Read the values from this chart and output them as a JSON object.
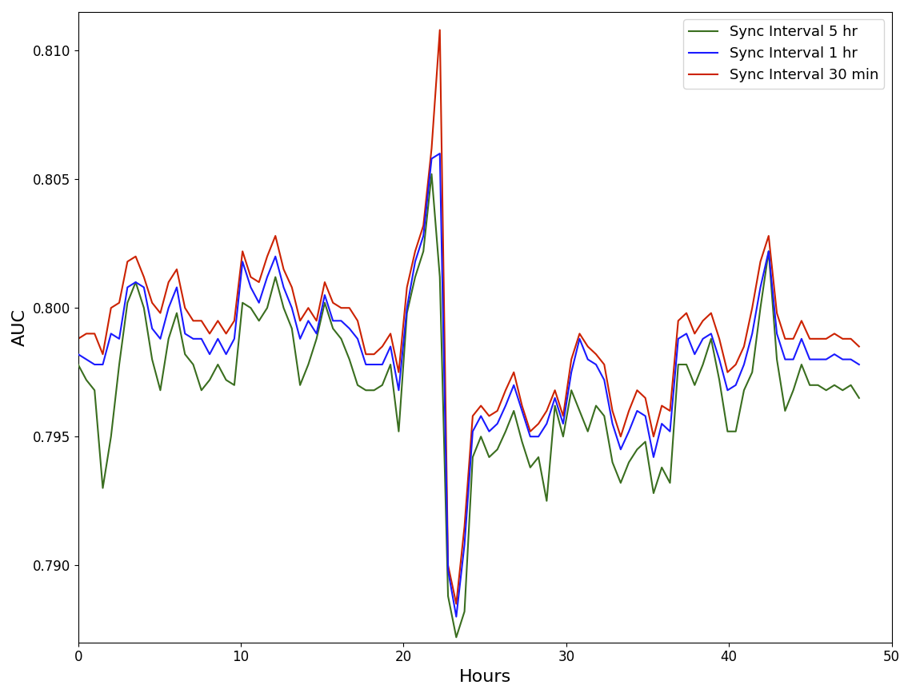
{
  "title": "",
  "xlabel": "Hours",
  "ylabel": "AUC",
  "xlim": [
    0,
    50
  ],
  "ylim": [
    0.787,
    0.8115
  ],
  "legend_labels": [
    "Sync Interval 5 hr",
    "Sync Interval 1 hr",
    "Sync Interval 30 min"
  ],
  "colors": [
    "#3a6e1f",
    "#1a1aff",
    "#cc2200"
  ],
  "linewidth": 1.5,
  "yticks": [
    0.79,
    0.795,
    0.8,
    0.805,
    0.81
  ],
  "xticks": [
    0,
    10,
    20,
    30,
    40,
    50
  ],
  "y_5hr": [
    0.7978,
    0.7972,
    0.7968,
    0.793,
    0.795,
    0.7978,
    0.8002,
    0.801,
    0.8,
    0.798,
    0.7968,
    0.7988,
    0.7998,
    0.7982,
    0.7978,
    0.7968,
    0.7972,
    0.7978,
    0.7972,
    0.797,
    0.8002,
    0.8,
    0.7995,
    0.8,
    0.8012,
    0.8,
    0.7992,
    0.797,
    0.7978,
    0.7988,
    0.8002,
    0.7992,
    0.7988,
    0.798,
    0.797,
    0.7968,
    0.7968,
    0.797,
    0.7978,
    0.7952,
    0.7998,
    0.8012,
    0.8022,
    0.8052,
    0.8012,
    0.7888,
    0.7872,
    0.7882,
    0.7942,
    0.795,
    0.7942,
    0.7945,
    0.7952,
    0.796,
    0.7948,
    0.7938,
    0.7942,
    0.7925,
    0.7962,
    0.795,
    0.7968,
    0.796,
    0.7952,
    0.7962,
    0.7958,
    0.794,
    0.7932,
    0.794,
    0.7945,
    0.7948,
    0.7928,
    0.7938,
    0.7932,
    0.7978,
    0.7978,
    0.797,
    0.7978,
    0.7988,
    0.7972,
    0.7952,
    0.7952,
    0.7968,
    0.7975,
    0.8,
    0.8022,
    0.798,
    0.796,
    0.7968,
    0.7978,
    0.797,
    0.797,
    0.7968,
    0.797,
    0.7968,
    0.797,
    0.7965
  ],
  "y_1hr": [
    0.7982,
    0.798,
    0.7978,
    0.7978,
    0.799,
    0.7988,
    0.8008,
    0.801,
    0.8008,
    0.7992,
    0.7988,
    0.8,
    0.8008,
    0.799,
    0.7988,
    0.7988,
    0.7982,
    0.7988,
    0.7982,
    0.7988,
    0.8018,
    0.8008,
    0.8002,
    0.8012,
    0.802,
    0.8008,
    0.8,
    0.7988,
    0.7995,
    0.799,
    0.8005,
    0.7995,
    0.7995,
    0.7992,
    0.7988,
    0.7978,
    0.7978,
    0.7978,
    0.7985,
    0.7968,
    0.8,
    0.8018,
    0.8028,
    0.8058,
    0.806,
    0.7898,
    0.788,
    0.7908,
    0.7952,
    0.7958,
    0.7952,
    0.7955,
    0.7962,
    0.797,
    0.796,
    0.795,
    0.795,
    0.7955,
    0.7965,
    0.7955,
    0.7975,
    0.7988,
    0.798,
    0.7978,
    0.7972,
    0.7955,
    0.7945,
    0.7952,
    0.796,
    0.7958,
    0.7942,
    0.7955,
    0.7952,
    0.7988,
    0.799,
    0.7982,
    0.7988,
    0.799,
    0.798,
    0.7968,
    0.797,
    0.7978,
    0.799,
    0.8008,
    0.8022,
    0.799,
    0.798,
    0.798,
    0.7988,
    0.798,
    0.798,
    0.798,
    0.7982,
    0.798,
    0.798,
    0.7978
  ],
  "y_30min": [
    0.7988,
    0.799,
    0.799,
    0.7982,
    0.8,
    0.8002,
    0.8018,
    0.802,
    0.8012,
    0.8002,
    0.7998,
    0.801,
    0.8015,
    0.8,
    0.7995,
    0.7995,
    0.799,
    0.7995,
    0.799,
    0.7995,
    0.8022,
    0.8012,
    0.801,
    0.802,
    0.8028,
    0.8015,
    0.8008,
    0.7995,
    0.8,
    0.7995,
    0.801,
    0.8002,
    0.8,
    0.8,
    0.7995,
    0.7982,
    0.7982,
    0.7985,
    0.799,
    0.7975,
    0.8008,
    0.8022,
    0.8032,
    0.8062,
    0.8108,
    0.79,
    0.7885,
    0.7915,
    0.7958,
    0.7962,
    0.7958,
    0.796,
    0.7968,
    0.7975,
    0.7962,
    0.7952,
    0.7955,
    0.796,
    0.7968,
    0.7958,
    0.798,
    0.799,
    0.7985,
    0.7982,
    0.7978,
    0.796,
    0.795,
    0.796,
    0.7968,
    0.7965,
    0.795,
    0.7962,
    0.796,
    0.7995,
    0.7998,
    0.799,
    0.7995,
    0.7998,
    0.7988,
    0.7975,
    0.7978,
    0.7985,
    0.8,
    0.8018,
    0.8028,
    0.7998,
    0.7988,
    0.7988,
    0.7995,
    0.7988,
    0.7988,
    0.7988,
    0.799,
    0.7988,
    0.7988,
    0.7985
  ]
}
